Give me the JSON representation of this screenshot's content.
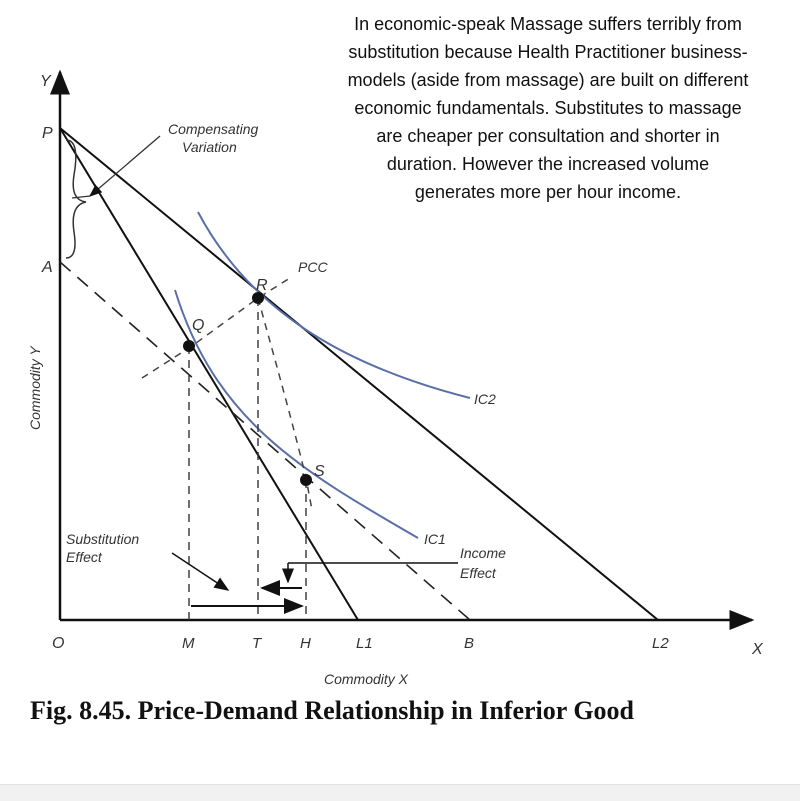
{
  "caption": {
    "lines": [
      "In economic-speak Massage suffers terribly from",
      "substitution because Health Practitioner business-",
      "models (aside from massage) are built on different",
      "economic fundamentals.  Substitutes to massage",
      "are cheaper per consultation and shorter in",
      "duration.  However the increased volume",
      "generates more per hour income."
    ]
  },
  "figure": {
    "title": "Fig. 8.45. Price-Demand Relationship in Inferior Good",
    "axis_y_letter": "Y",
    "axis_x_letter": "X",
    "axis_y_label": "Commodity Y",
    "axis_x_label": "Commodity X",
    "origin": "O",
    "point_labels": {
      "P": "P",
      "A": "A",
      "Q": "Q",
      "R": "R",
      "S": "S",
      "M": "M",
      "T": "T",
      "H": "H",
      "L1": "L1",
      "B": "B",
      "L2": "L2"
    },
    "curve_labels": {
      "ic1": "IC1",
      "ic2": "IC2",
      "pcc": "PCC"
    },
    "annotations": {
      "compensating_1": "Compensating",
      "compensating_2": "Variation",
      "substitution_1": "Substitution",
      "substitution_2": "Effect",
      "income_1": "Income",
      "income_2": "Effect"
    },
    "colors": {
      "ink": "#111111",
      "curve": "#5a6fa8",
      "label": "#333333"
    }
  }
}
